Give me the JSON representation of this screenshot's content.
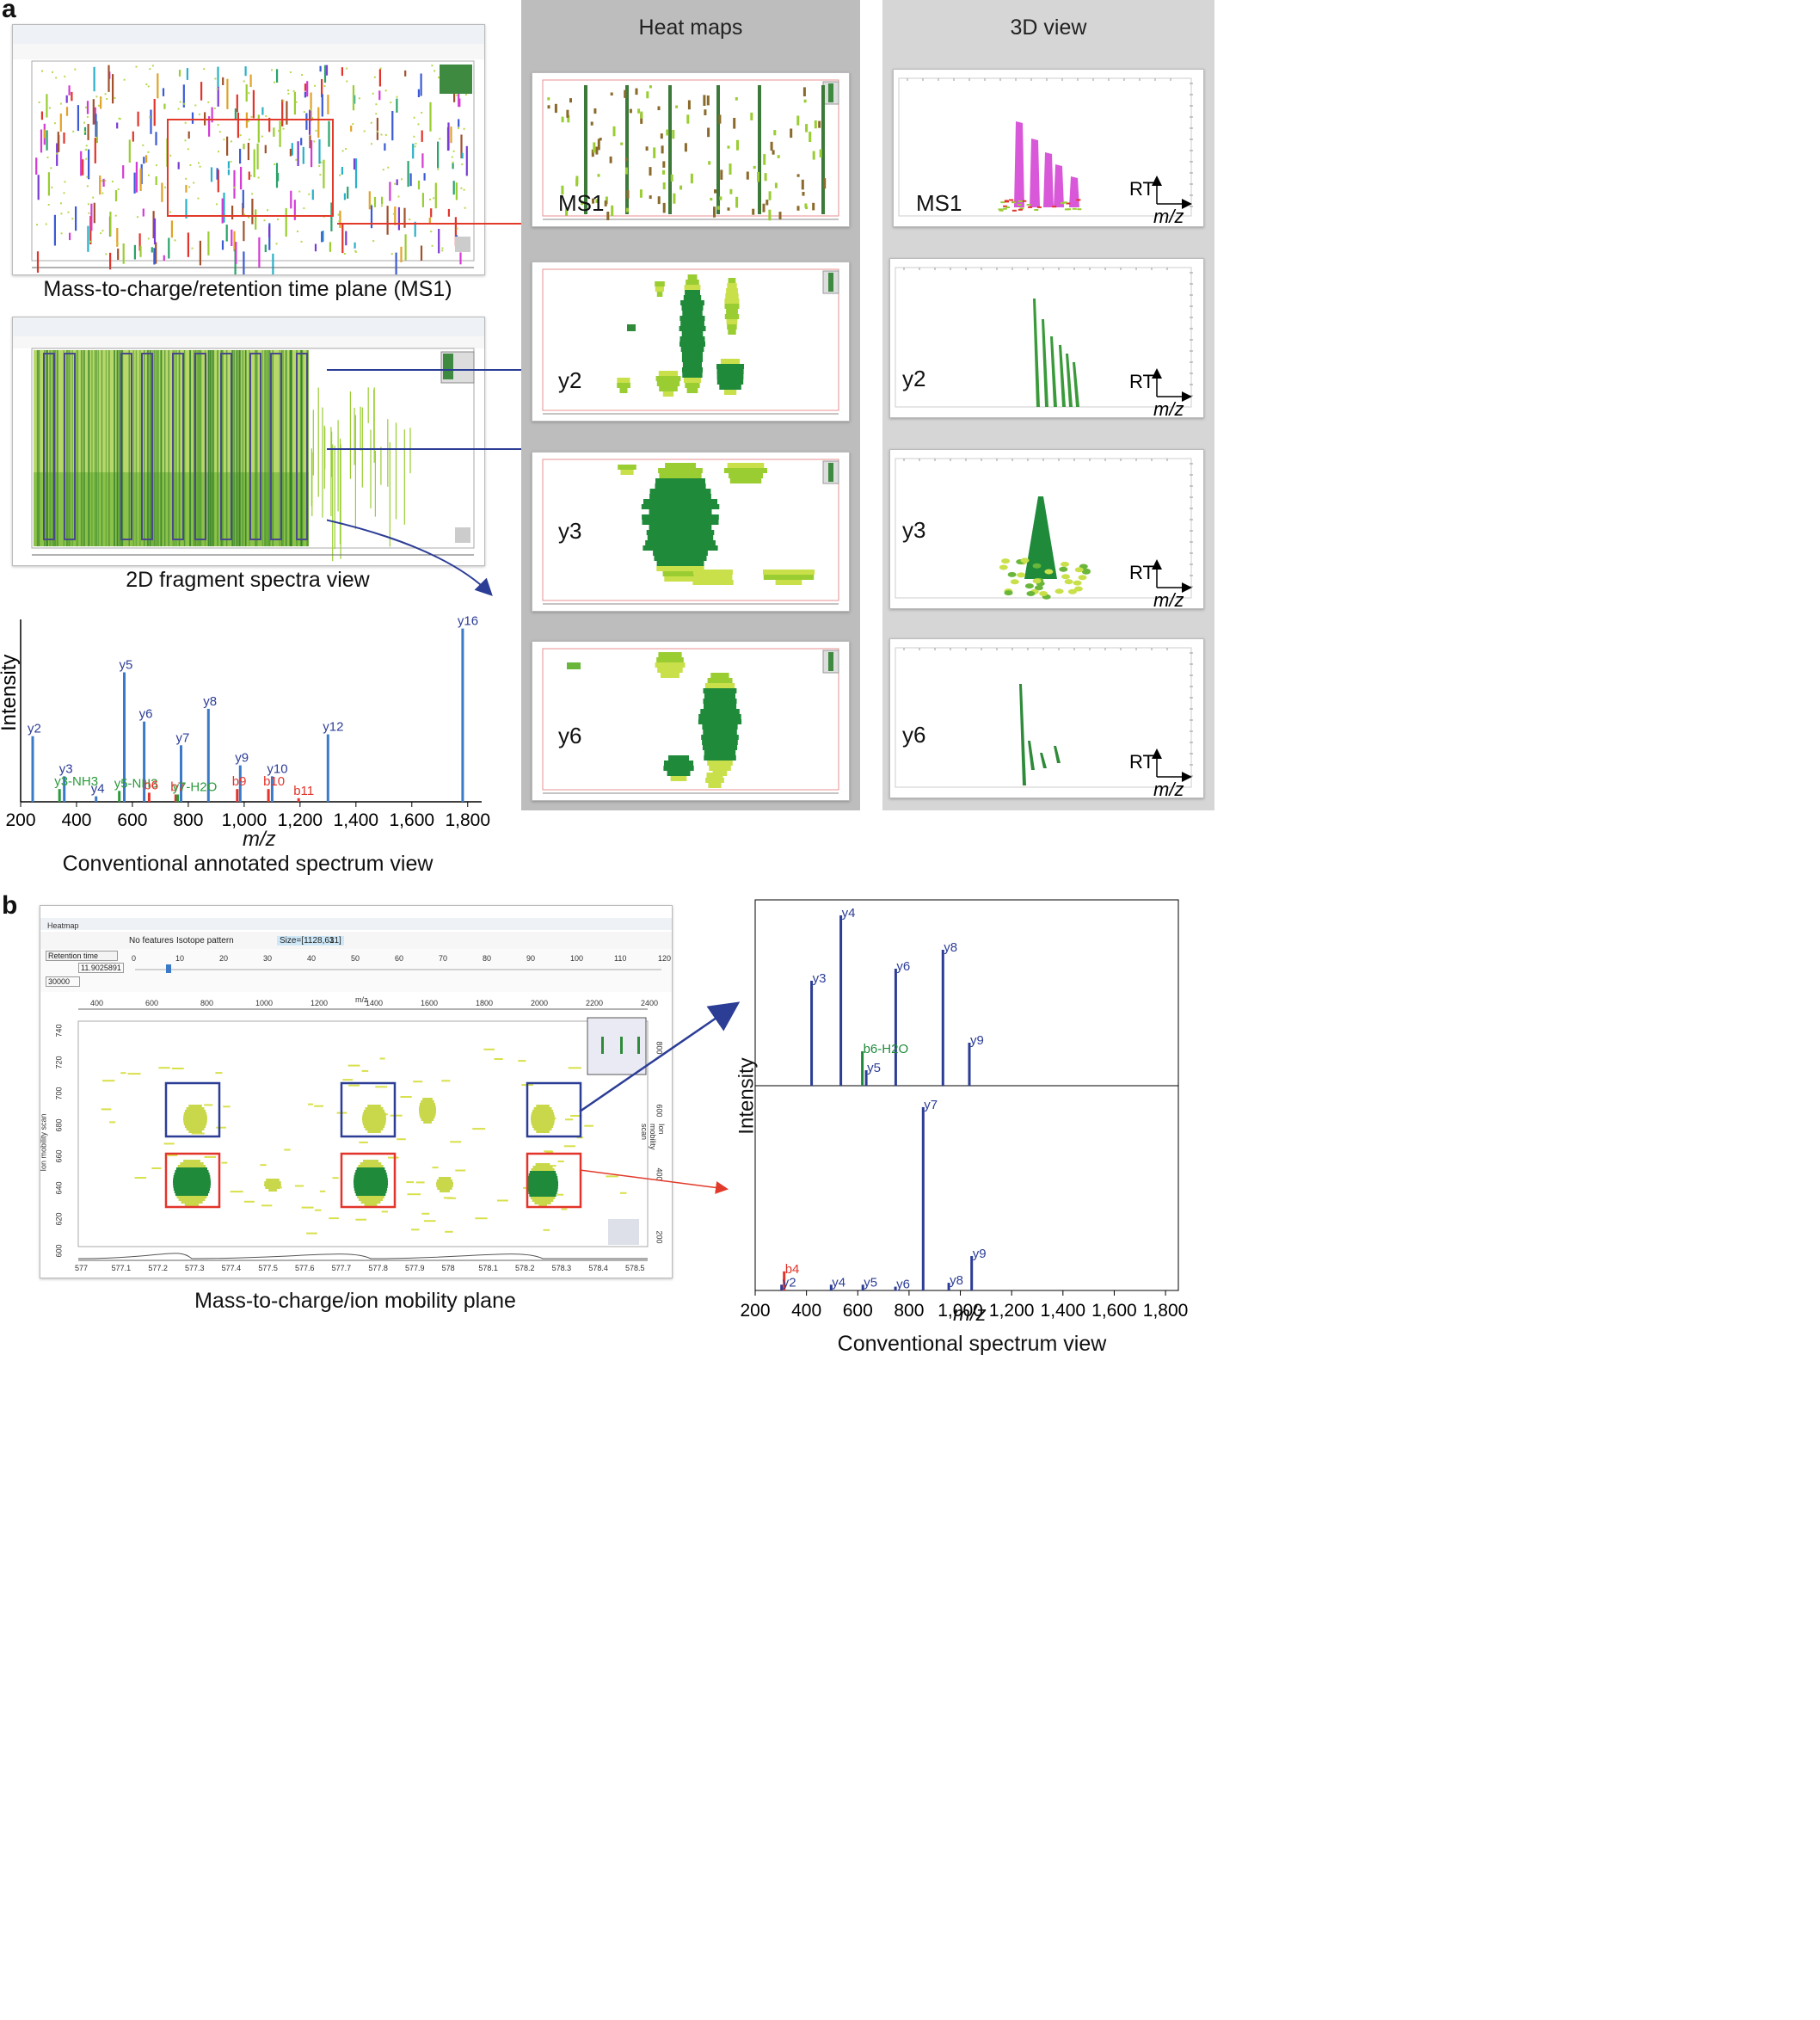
{
  "panel_a": {
    "letter": "a",
    "captions": {
      "ms1_plane": "Mass-to-charge/retention time plane (MS1)",
      "fragment_view": "2D fragment spectra view",
      "annotated_view": "Conventional annotated spectrum view"
    },
    "columns": {
      "heat_maps": "Heat maps",
      "view_3d": "3D view"
    },
    "rows": [
      "MS1",
      "y2",
      "y3",
      "y6"
    ],
    "axis_rt": "RT",
    "axis_mz": "m/z"
  },
  "panel_b": {
    "letter": "b",
    "heatmap_title": "Heatmap",
    "toolbar": {
      "no_features": "No features",
      "isotope_pattern": "Isotope pattern",
      "size": "Size=[1128,631]",
      "count": "1"
    },
    "slider": {
      "label": "Retention time",
      "ticks": [
        "0",
        "10",
        "20",
        "30",
        "40",
        "50",
        "60",
        "70",
        "80",
        "90",
        "100",
        "110",
        "120"
      ],
      "value": "11.9025891",
      "value2": "30000"
    },
    "top_axis": {
      "label": "m/z",
      "ticks": [
        "400",
        "600",
        "800",
        "1000",
        "1200",
        "1400",
        "1600",
        "1800",
        "2000",
        "2200",
        "2400"
      ]
    },
    "bottom_axis": {
      "ticks": [
        "577",
        "577.1",
        "577.2",
        "577.3",
        "577.4",
        "577.5",
        "577.6",
        "577.7",
        "577.8",
        "577.9",
        "578",
        "578.1",
        "578.2",
        "578.3",
        "578.4",
        "578.5"
      ]
    },
    "left_axis": {
      "label": "Ion mobility scan",
      "ticks": [
        "740",
        "720",
        "700",
        "680",
        "660",
        "640",
        "620",
        "600"
      ]
    },
    "right_axis": {
      "label": "Ion mobility scan",
      "ticks": [
        "800",
        "600",
        "400",
        "200"
      ]
    },
    "caption_plane": "Mass-to-charge/ion mobility plane",
    "caption_spectrum": "Conventional spectrum view"
  },
  "chart_data": [
    {
      "type": "bar",
      "title": "Conventional annotated spectrum view",
      "xlabel": "m/z",
      "ylabel": "Intensity",
      "xlim": [
        200,
        1850
      ],
      "ylim": [
        0,
        100
      ],
      "xticks": [
        "200",
        "400",
        "600",
        "800",
        "1,000",
        "1,200",
        "1,400",
        "1,600",
        "1,800"
      ],
      "peaks": [
        {
          "x": 243,
          "y": 36,
          "label": "y2",
          "ion": "y"
        },
        {
          "x": 339,
          "y": 7,
          "label": "y3-NH3",
          "ion": "neutral"
        },
        {
          "x": 356,
          "y": 14,
          "label": "y3",
          "ion": "y"
        },
        {
          "x": 470,
          "y": 3,
          "label": "y4",
          "ion": "y"
        },
        {
          "x": 553,
          "y": 6,
          "label": "y5-NH3",
          "ion": "neutral"
        },
        {
          "x": 571,
          "y": 71,
          "label": "y5",
          "ion": "y"
        },
        {
          "x": 642,
          "y": 44,
          "label": "y6",
          "ion": "y"
        },
        {
          "x": 660,
          "y": 5,
          "label": "b6",
          "ion": "b"
        },
        {
          "x": 755,
          "y": 4,
          "label": "b7",
          "ion": "b"
        },
        {
          "x": 762,
          "y": 4,
          "label": "y7-H2O",
          "ion": "neutral"
        },
        {
          "x": 774,
          "y": 31,
          "label": "y7",
          "ion": "y"
        },
        {
          "x": 872,
          "y": 51,
          "label": "y8",
          "ion": "y"
        },
        {
          "x": 975,
          "y": 7,
          "label": "b9",
          "ion": "b"
        },
        {
          "x": 986,
          "y": 20,
          "label": "y9",
          "ion": "y"
        },
        {
          "x": 1087,
          "y": 7,
          "label": "b10",
          "ion": "b"
        },
        {
          "x": 1100,
          "y": 14,
          "label": "y10",
          "ion": "y"
        },
        {
          "x": 1195,
          "y": 2,
          "label": "b11",
          "ion": "b"
        },
        {
          "x": 1300,
          "y": 37,
          "label": "y12",
          "ion": "y"
        },
        {
          "x": 1782,
          "y": 95,
          "label": "y16",
          "ion": "y"
        }
      ]
    },
    {
      "type": "bar",
      "title": "Conventional spectrum view (top)",
      "xlabel": "m/z",
      "ylabel": "Intensity",
      "xlim": [
        200,
        1850
      ],
      "ylim": [
        0,
        100
      ],
      "peaks": [
        {
          "x": 420,
          "y": 61,
          "label": "y3",
          "ion": "y"
        },
        {
          "x": 534,
          "y": 99,
          "label": "y4",
          "ion": "y"
        },
        {
          "x": 618,
          "y": 20,
          "label": "b6-H2O",
          "ion": "neutral"
        },
        {
          "x": 633,
          "y": 9,
          "label": "y5",
          "ion": "y"
        },
        {
          "x": 748,
          "y": 68,
          "label": "y6",
          "ion": "y"
        },
        {
          "x": 932,
          "y": 79,
          "label": "y8",
          "ion": "y"
        },
        {
          "x": 1035,
          "y": 25,
          "label": "y9",
          "ion": "y"
        }
      ]
    },
    {
      "type": "bar",
      "title": "Conventional spectrum view (bottom)",
      "xlabel": "m/z",
      "ylabel": "Intensity",
      "xlim": [
        200,
        1850
      ],
      "ylim": [
        0,
        100
      ],
      "xticks": [
        "200",
        "400",
        "600",
        "800",
        "1,000",
        "1,200",
        "1,400",
        "1,600",
        "1,800"
      ],
      "peaks": [
        {
          "x": 303,
          "y": 3,
          "label": "y2",
          "ion": "y"
        },
        {
          "x": 313,
          "y": 10,
          "label": "b4",
          "ion": "b"
        },
        {
          "x": 496,
          "y": 3,
          "label": "y4",
          "ion": "y"
        },
        {
          "x": 620,
          "y": 3,
          "label": "y5",
          "ion": "y"
        },
        {
          "x": 747,
          "y": 2,
          "label": "y6",
          "ion": "y"
        },
        {
          "x": 855,
          "y": 96,
          "label": "y7",
          "ion": "y"
        },
        {
          "x": 955,
          "y": 4,
          "label": "y8",
          "ion": "y"
        },
        {
          "x": 1044,
          "y": 18,
          "label": "y9",
          "ion": "y"
        }
      ]
    }
  ]
}
